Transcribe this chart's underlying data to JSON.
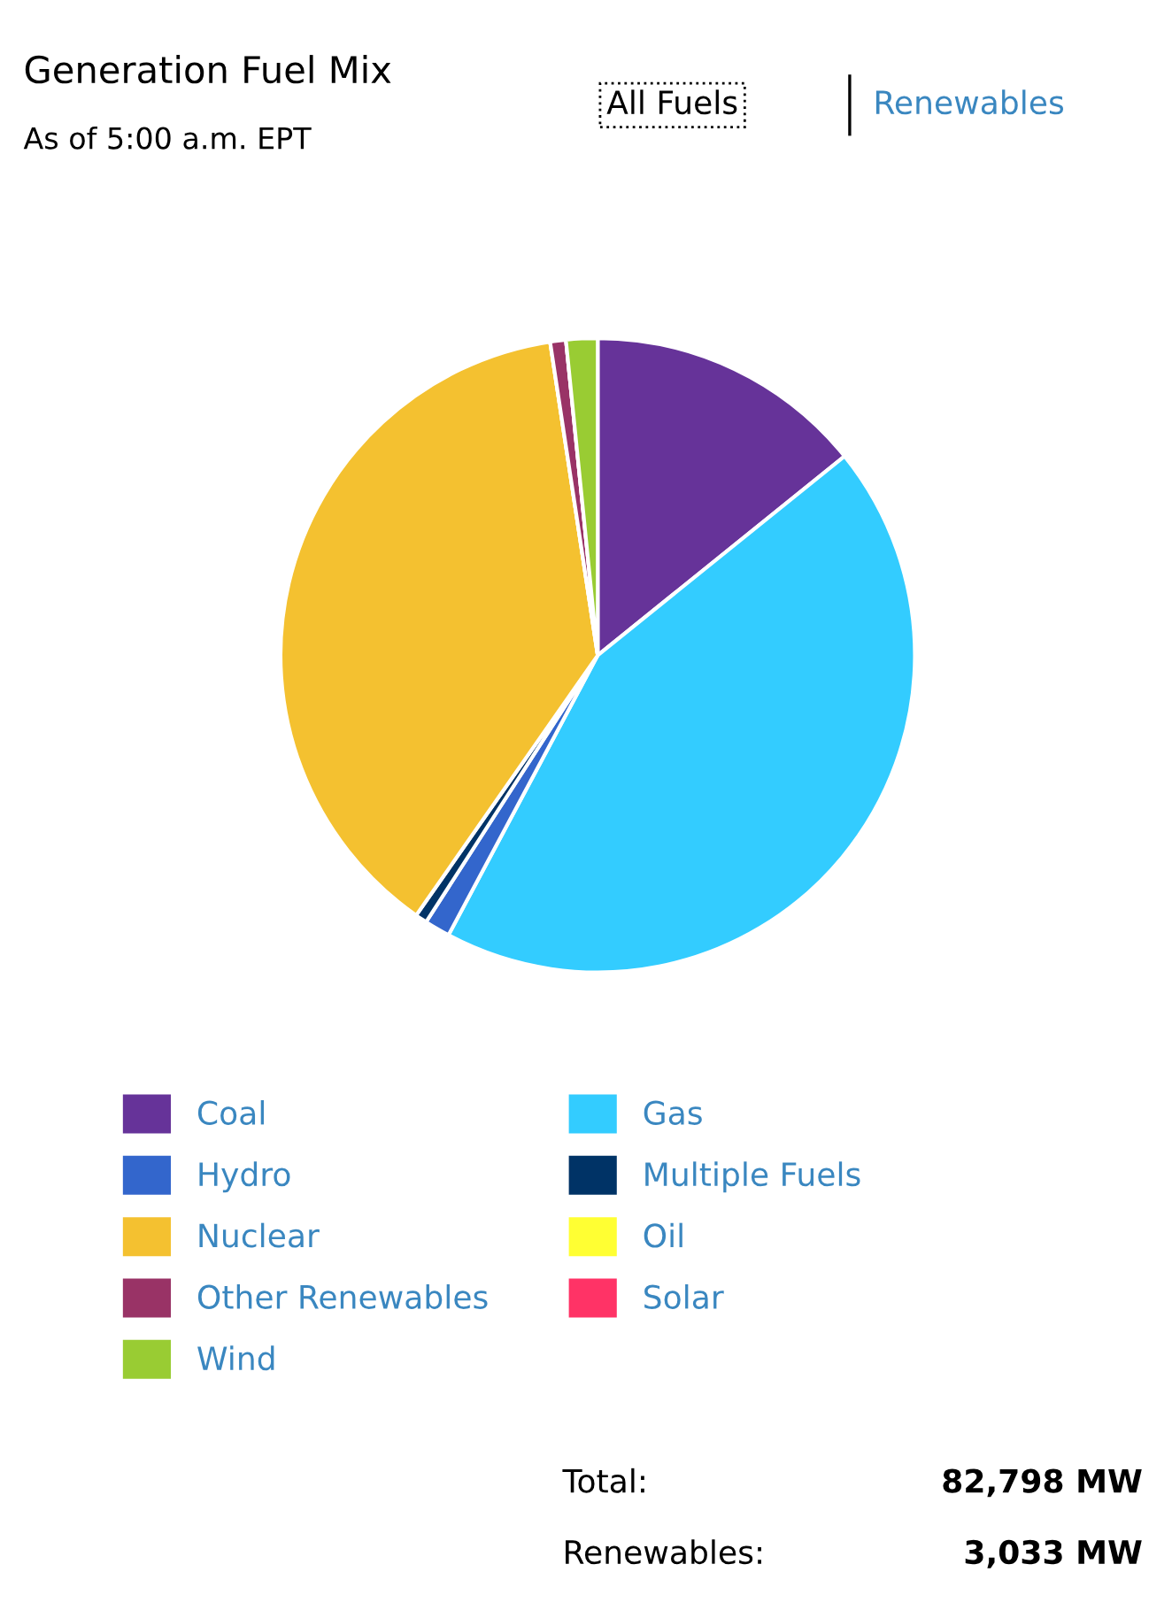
{
  "chart_data": {
    "type": "pie",
    "title": "Generation Fuel Mix",
    "subtitle": "As of 5:00 a.m. EPT",
    "categories": [
      "Coal",
      "Gas",
      "Hydro",
      "Multiple Fuels",
      "Nuclear",
      "Oil",
      "Other Renewables",
      "Solar",
      "Wind"
    ],
    "values": [
      14.2,
      43.6,
      1.3,
      0.6,
      37.9,
      0,
      0.8,
      0,
      1.6
    ],
    "colors": [
      "#663399",
      "#33ccff",
      "#3366cc",
      "#003366",
      "#f4c130",
      "#ffff33",
      "#993366",
      "#ff3366",
      "#99cc33"
    ],
    "legend": "bottom",
    "annotations": [
      "All Fuels",
      "Renewables",
      "Total:",
      "82,798 MW",
      "Renewables:",
      "3,033 MW"
    ]
  }
}
